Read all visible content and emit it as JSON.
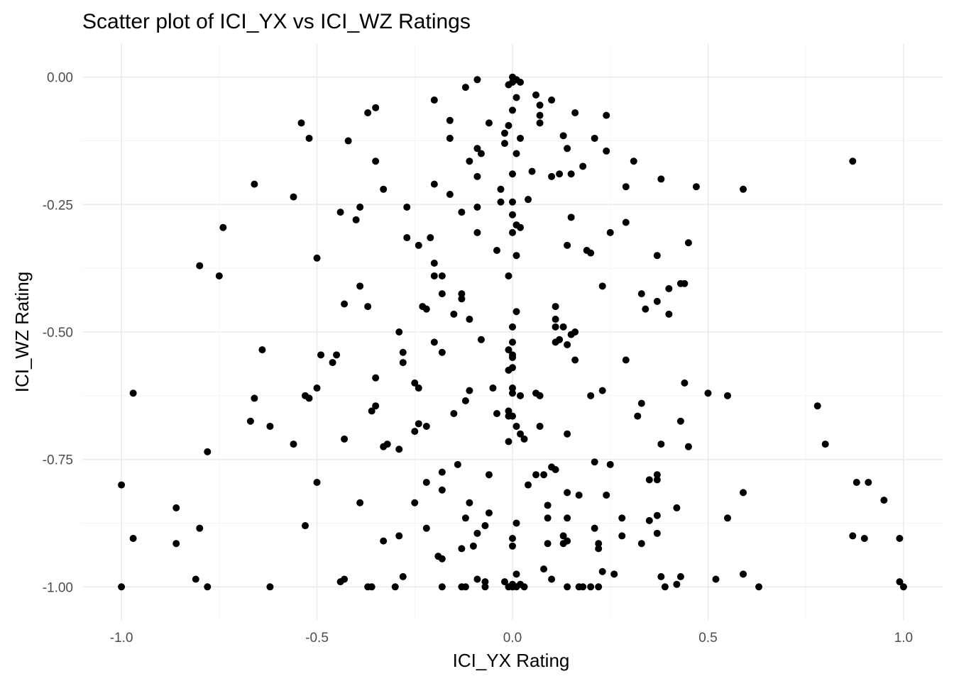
{
  "chart_data": {
    "type": "scatter",
    "title": "Scatter plot of ICI_YX vs ICI_WZ Ratings",
    "xlabel": "ICI_YX Rating",
    "ylabel": "ICI_WZ Rating",
    "xlim": [
      -1.1,
      1.1
    ],
    "ylim": [
      -1.065,
      0.065
    ],
    "x_ticks": [
      -1.0,
      -0.5,
      0.0,
      0.5,
      1.0
    ],
    "x_tick_labels": [
      "-1.0",
      "-0.5",
      "0.0",
      "0.5",
      "1.0"
    ],
    "y_ticks": [
      0.0,
      -0.25,
      -0.5,
      -0.75,
      -1.0
    ],
    "y_tick_labels": [
      "0.00",
      "-0.25",
      "-0.50",
      "-0.75",
      "-1.00"
    ],
    "x_minor_ticks": [
      -0.75,
      -0.25,
      0.25,
      0.75
    ],
    "y_minor_ticks": [
      -0.125,
      -0.375,
      -0.625,
      -0.875
    ],
    "grid": true,
    "point_color": "#000000",
    "points": [
      [
        -0.09,
        -0.005
      ],
      [
        -0.12,
        -0.02
      ],
      [
        0.0,
        0.0
      ],
      [
        0.0,
        -0.01
      ],
      [
        0.01,
        -0.005
      ],
      [
        0.02,
        -0.01
      ],
      [
        -0.01,
        -0.015
      ],
      [
        -0.2,
        -0.045
      ],
      [
        0.1,
        -0.045
      ],
      [
        0.01,
        -0.04
      ],
      [
        0.06,
        -0.035
      ],
      [
        0.07,
        -0.055
      ],
      [
        -0.35,
        -0.06
      ],
      [
        -0.37,
        -0.07
      ],
      [
        0.16,
        -0.07
      ],
      [
        0.0,
        -0.065
      ],
      [
        0.24,
        -0.075
      ],
      [
        0.07,
        -0.075
      ],
      [
        -0.54,
        -0.09
      ],
      [
        -0.16,
        -0.085
      ],
      [
        -0.06,
        -0.09
      ],
      [
        -0.01,
        -0.095
      ],
      [
        0.07,
        -0.09
      ],
      [
        -0.52,
        -0.12
      ],
      [
        -0.42,
        -0.125
      ],
      [
        -0.16,
        -0.12
      ],
      [
        -0.02,
        -0.11
      ],
      [
        -0.02,
        -0.13
      ],
      [
        0.02,
        -0.12
      ],
      [
        0.13,
        -0.115
      ],
      [
        0.21,
        -0.12
      ],
      [
        -0.09,
        -0.14
      ],
      [
        -0.08,
        -0.15
      ],
      [
        0.01,
        -0.15
      ],
      [
        0.14,
        -0.14
      ],
      [
        0.24,
        -0.145
      ],
      [
        -0.35,
        -0.165
      ],
      [
        -0.11,
        -0.165
      ],
      [
        0.31,
        -0.165
      ],
      [
        0.87,
        -0.165
      ],
      [
        -0.66,
        -0.21
      ],
      [
        -0.09,
        -0.195
      ],
      [
        0.0,
        -0.19
      ],
      [
        0.05,
        -0.185
      ],
      [
        0.1,
        -0.195
      ],
      [
        0.12,
        -0.19
      ],
      [
        0.15,
        -0.19
      ],
      [
        0.18,
        -0.175
      ],
      [
        0.38,
        -0.2
      ],
      [
        -0.33,
        -0.22
      ],
      [
        -0.2,
        -0.21
      ],
      [
        -0.16,
        -0.23
      ],
      [
        0.29,
        -0.215
      ],
      [
        0.47,
        -0.215
      ],
      [
        0.59,
        -0.22
      ],
      [
        -0.56,
        -0.235
      ],
      [
        -0.03,
        -0.22
      ],
      [
        0.04,
        -0.24
      ],
      [
        -0.27,
        -0.255
      ],
      [
        -0.39,
        -0.255
      ],
      [
        -0.44,
        -0.265
      ],
      [
        -0.13,
        -0.265
      ],
      [
        -0.09,
        -0.255
      ],
      [
        -0.03,
        -0.245
      ],
      [
        0.0,
        -0.245
      ],
      [
        0.0,
        -0.27
      ],
      [
        0.15,
        -0.275
      ],
      [
        -0.4,
        -0.28
      ],
      [
        -0.74,
        -0.295
      ],
      [
        0.01,
        -0.29
      ],
      [
        0.02,
        -0.295
      ],
      [
        0.29,
        -0.285
      ],
      [
        -0.09,
        -0.305
      ],
      [
        0.0,
        -0.305
      ],
      [
        0.25,
        -0.305
      ],
      [
        -0.27,
        -0.315
      ],
      [
        -0.21,
        -0.315
      ],
      [
        -0.24,
        -0.33
      ],
      [
        0.14,
        -0.33
      ],
      [
        0.45,
        -0.325
      ],
      [
        -0.5,
        -0.355
      ],
      [
        -0.04,
        -0.34
      ],
      [
        0.01,
        -0.35
      ],
      [
        0.19,
        -0.34
      ],
      [
        0.2,
        -0.345
      ],
      [
        -0.2,
        -0.365
      ],
      [
        0.37,
        -0.35
      ],
      [
        -0.8,
        -0.37
      ],
      [
        -0.75,
        -0.39
      ],
      [
        -0.2,
        -0.39
      ],
      [
        -0.18,
        -0.39
      ],
      [
        -0.01,
        -0.39
      ],
      [
        -0.39,
        -0.41
      ],
      [
        0.23,
        -0.41
      ],
      [
        0.4,
        -0.415
      ],
      [
        0.43,
        -0.405
      ],
      [
        0.44,
        -0.405
      ],
      [
        -0.18,
        -0.425
      ],
      [
        -0.13,
        -0.425
      ],
      [
        -0.13,
        -0.435
      ],
      [
        0.33,
        -0.425
      ],
      [
        -0.43,
        -0.445
      ],
      [
        -0.37,
        -0.45
      ],
      [
        -0.23,
        -0.45
      ],
      [
        -0.22,
        -0.455
      ],
      [
        0.11,
        -0.45
      ],
      [
        0.34,
        -0.455
      ],
      [
        0.37,
        -0.44
      ],
      [
        -0.15,
        -0.465
      ],
      [
        0.01,
        -0.46
      ],
      [
        0.4,
        -0.465
      ],
      [
        -0.11,
        -0.475
      ],
      [
        0.11,
        -0.475
      ],
      [
        0.11,
        -0.49
      ],
      [
        0.13,
        -0.49
      ],
      [
        0.0,
        -0.49
      ],
      [
        -0.29,
        -0.5
      ],
      [
        0.16,
        -0.5
      ],
      [
        0.15,
        -0.505
      ],
      [
        0.12,
        -0.515
      ],
      [
        -0.08,
        -0.515
      ],
      [
        0.11,
        -0.52
      ],
      [
        0.14,
        -0.525
      ],
      [
        -0.2,
        -0.52
      ],
      [
        0.0,
        -0.52
      ],
      [
        -0.64,
        -0.535
      ],
      [
        -0.28,
        -0.54
      ],
      [
        -0.18,
        -0.54
      ],
      [
        -0.01,
        -0.535
      ],
      [
        0.0,
        -0.545
      ],
      [
        -0.49,
        -0.545
      ],
      [
        -0.45,
        -0.545
      ],
      [
        -0.46,
        -0.56
      ],
      [
        0.0,
        -0.55
      ],
      [
        -0.28,
        -0.56
      ],
      [
        0.16,
        -0.555
      ],
      [
        0.29,
        -0.555
      ],
      [
        0.0,
        -0.57
      ],
      [
        -0.01,
        -0.575
      ],
      [
        -0.35,
        -0.59
      ],
      [
        -0.25,
        -0.6
      ],
      [
        -0.24,
        -0.61
      ],
      [
        0.44,
        -0.6
      ],
      [
        -0.5,
        -0.61
      ],
      [
        -0.11,
        -0.615
      ],
      [
        -0.05,
        -0.61
      ],
      [
        0.0,
        -0.61
      ],
      [
        0.23,
        -0.615
      ],
      [
        -0.97,
        -0.62
      ],
      [
        -0.53,
        -0.625
      ],
      [
        -0.52,
        -0.63
      ],
      [
        0.0,
        -0.62
      ],
      [
        0.02,
        -0.625
      ],
      [
        0.06,
        -0.62
      ],
      [
        0.07,
        -0.625
      ],
      [
        0.2,
        -0.625
      ],
      [
        0.5,
        -0.62
      ],
      [
        0.55,
        -0.625
      ],
      [
        -0.66,
        -0.63
      ],
      [
        -0.12,
        -0.635
      ],
      [
        0.33,
        -0.64
      ],
      [
        -0.35,
        -0.645
      ],
      [
        0.78,
        -0.645
      ],
      [
        -0.36,
        -0.655
      ],
      [
        -0.15,
        -0.66
      ],
      [
        -0.04,
        -0.66
      ],
      [
        -0.01,
        -0.655
      ],
      [
        0.0,
        -0.665
      ],
      [
        -0.67,
        -0.675
      ],
      [
        -0.01,
        -0.665
      ],
      [
        0.32,
        -0.665
      ],
      [
        -0.62,
        -0.685
      ],
      [
        -0.24,
        -0.68
      ],
      [
        -0.22,
        -0.685
      ],
      [
        -0.25,
        -0.695
      ],
      [
        0.01,
        -0.685
      ],
      [
        0.07,
        -0.685
      ],
      [
        0.43,
        -0.675
      ],
      [
        0.02,
        -0.7
      ],
      [
        0.14,
        -0.7
      ],
      [
        -0.43,
        -0.71
      ],
      [
        -0.01,
        -0.715
      ],
      [
        0.03,
        -0.71
      ],
      [
        -0.56,
        -0.72
      ],
      [
        -0.32,
        -0.72
      ],
      [
        -0.33,
        -0.725
      ],
      [
        -0.29,
        -0.73
      ],
      [
        0.38,
        -0.72
      ],
      [
        0.45,
        -0.725
      ],
      [
        0.8,
        -0.72
      ],
      [
        -0.78,
        -0.735
      ],
      [
        0.21,
        -0.755
      ],
      [
        0.25,
        -0.76
      ],
      [
        -0.14,
        -0.76
      ],
      [
        -0.18,
        -0.775
      ],
      [
        0.1,
        -0.765
      ],
      [
        0.11,
        -0.77
      ],
      [
        -0.06,
        -0.78
      ],
      [
        0.06,
        -0.78
      ],
      [
        0.08,
        -0.78
      ],
      [
        0.37,
        -0.78
      ],
      [
        0.37,
        -0.79
      ],
      [
        0.35,
        -0.79
      ],
      [
        -1.0,
        -0.8
      ],
      [
        -0.5,
        -0.795
      ],
      [
        -0.22,
        -0.795
      ],
      [
        0.04,
        -0.8
      ],
      [
        0.88,
        -0.795
      ],
      [
        0.91,
        -0.795
      ],
      [
        -0.18,
        -0.81
      ],
      [
        0.14,
        -0.815
      ],
      [
        0.17,
        -0.82
      ],
      [
        0.24,
        -0.82
      ],
      [
        0.59,
        -0.815
      ],
      [
        -0.39,
        -0.835
      ],
      [
        -0.25,
        -0.835
      ],
      [
        -0.11,
        -0.835
      ],
      [
        0.09,
        -0.84
      ],
      [
        0.42,
        -0.845
      ],
      [
        0.95,
        -0.83
      ],
      [
        -0.86,
        -0.845
      ],
      [
        -0.06,
        -0.855
      ],
      [
        -0.12,
        -0.865
      ],
      [
        0.09,
        -0.865
      ],
      [
        0.14,
        -0.865
      ],
      [
        0.28,
        -0.865
      ],
      [
        0.55,
        -0.865
      ],
      [
        0.37,
        -0.86
      ],
      [
        0.35,
        -0.87
      ],
      [
        -0.8,
        -0.885
      ],
      [
        -0.53,
        -0.88
      ],
      [
        -0.22,
        -0.885
      ],
      [
        -0.07,
        -0.88
      ],
      [
        -0.09,
        -0.895
      ],
      [
        0.01,
        -0.875
      ],
      [
        0.21,
        -0.885
      ],
      [
        0.37,
        -0.895
      ],
      [
        -0.97,
        -0.905
      ],
      [
        -0.29,
        -0.9
      ],
      [
        0.13,
        -0.9
      ],
      [
        0.28,
        -0.9
      ],
      [
        0.87,
        -0.9
      ],
      [
        0.9,
        -0.905
      ],
      [
        0.99,
        -0.905
      ],
      [
        -0.86,
        -0.915
      ],
      [
        -0.33,
        -0.91
      ],
      [
        -0.0,
        -0.905
      ],
      [
        0.09,
        -0.915
      ],
      [
        0.13,
        -0.915
      ],
      [
        0.14,
        -0.91
      ],
      [
        0.22,
        -0.915
      ],
      [
        0.33,
        -0.915
      ],
      [
        -0.13,
        -0.925
      ],
      [
        -0.1,
        -0.92
      ],
      [
        0.0,
        -0.92
      ],
      [
        0.22,
        -0.925
      ],
      [
        -0.19,
        -0.94
      ],
      [
        -0.18,
        -0.945
      ],
      [
        0.08,
        -0.965
      ],
      [
        0.23,
        -0.97
      ],
      [
        0.26,
        -0.975
      ],
      [
        -0.28,
        -0.98
      ],
      [
        -0.09,
        -0.985
      ],
      [
        0.01,
        -0.975
      ],
      [
        0.1,
        -0.985
      ],
      [
        0.38,
        -0.98
      ],
      [
        0.43,
        -0.98
      ],
      [
        0.52,
        -0.985
      ],
      [
        0.59,
        -0.975
      ],
      [
        -0.81,
        -0.985
      ],
      [
        -0.44,
        -0.99
      ],
      [
        -0.43,
        -0.985
      ],
      [
        -0.07,
        -0.99
      ],
      [
        -0.02,
        -0.99
      ],
      [
        0.0,
        -0.995
      ],
      [
        0.02,
        -0.995
      ],
      [
        0.42,
        -0.995
      ],
      [
        0.99,
        -0.99
      ],
      [
        -1.0,
        -1.0
      ],
      [
        -0.78,
        -1.0
      ],
      [
        -0.62,
        -1.0
      ],
      [
        -0.37,
        -1.0
      ],
      [
        -0.36,
        -1.0
      ],
      [
        -0.3,
        -1.0
      ],
      [
        -0.18,
        -1.0
      ],
      [
        -0.13,
        -1.0
      ],
      [
        -0.12,
        -1.0
      ],
      [
        -0.07,
        -1.0
      ],
      [
        -0.01,
        -1.0
      ],
      [
        0.0,
        -1.0
      ],
      [
        0.01,
        -1.0
      ],
      [
        0.03,
        -1.0
      ],
      [
        0.14,
        -1.0
      ],
      [
        0.17,
        -1.0
      ],
      [
        0.18,
        -1.0
      ],
      [
        0.2,
        -1.0
      ],
      [
        0.22,
        -1.0
      ],
      [
        0.39,
        -1.0
      ],
      [
        0.63,
        -1.0
      ],
      [
        1.0,
        -1.0
      ]
    ]
  }
}
